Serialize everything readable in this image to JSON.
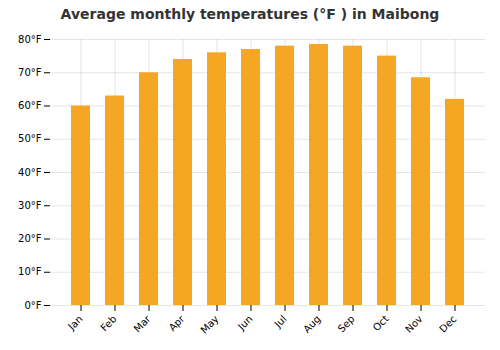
{
  "chart_data": {
    "type": "bar",
    "title": "Average monthly temperatures (°F ) in Maibong",
    "categories": [
      "Jan",
      "Feb",
      "Mar",
      "Apr",
      "May",
      "Jun",
      "Jul",
      "Aug",
      "Sep",
      "Oct",
      "Nov",
      "Dec"
    ],
    "values": [
      60,
      63,
      70,
      74,
      76,
      77,
      78,
      78.5,
      78,
      75,
      68.5,
      62
    ],
    "color": "#F5A623",
    "ylim": [
      0,
      80
    ],
    "yticks": [
      {
        "value": 0,
        "label": "0°F"
      },
      {
        "value": 10,
        "label": "10°F"
      },
      {
        "value": 20,
        "label": "20°F"
      },
      {
        "value": 30,
        "label": "30°F"
      },
      {
        "value": 40,
        "label": "40°F"
      },
      {
        "value": 50,
        "label": "50°F"
      },
      {
        "value": 60,
        "label": "60°F"
      },
      {
        "value": 70,
        "label": "70°F"
      },
      {
        "value": 80,
        "label": "80°F"
      }
    ],
    "grid": true
  }
}
